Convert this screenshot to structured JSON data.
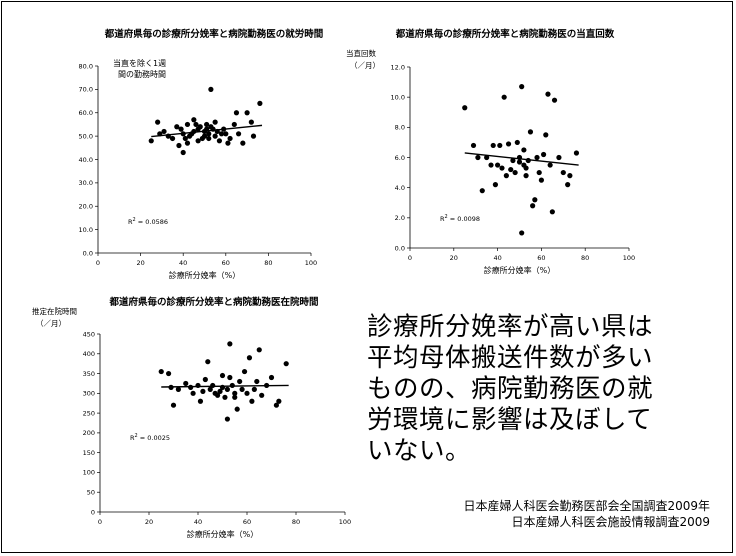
{
  "main_text": "診療所分娩率が高い県は\n平均母体搬送件数が多い\nものの、病院勤務医の就\n労環境に影響は及ぼして\nいない。",
  "sources": [
    "日本産婦人科医会勤務医部会全国調査2009年",
    "日本産婦人科医会施設情報調査2009"
  ],
  "chart_data": [
    {
      "type": "scatter",
      "title": "都道府県毎の診療所分娩率と病院勤務医の就労時間",
      "xlabel": "診療所分娩率（%）",
      "ylabel": "",
      "y_unit": [],
      "annotation": [
        "当直を除く1週",
        "間の勤務時間"
      ],
      "r2_text": "R² = 0.0586",
      "r2_base": "R",
      "r2_sup": "2",
      "r2_rest": " = 0.0586",
      "xlim": [
        0,
        100
      ],
      "ylim": [
        0,
        80
      ],
      "x_ticks": [
        0,
        20,
        40,
        60,
        80,
        100
      ],
      "y_ticks": [
        "0.0",
        "10.0",
        "20.0",
        "30.0",
        "40.0",
        "50.0",
        "60.0",
        "70.0",
        "80.0"
      ],
      "x": [
        25,
        28,
        29,
        31,
        33,
        35,
        37,
        38,
        39,
        40,
        40,
        41,
        42,
        42,
        43,
        44,
        45,
        45,
        46,
        47,
        47,
        48,
        49,
        50,
        50,
        51,
        51,
        52,
        52,
        53,
        53,
        54,
        55,
        55,
        56,
        57,
        58,
        59,
        60,
        61,
        62,
        64,
        65,
        66,
        68,
        70,
        72,
        73,
        76
      ],
      "y": [
        48,
        56,
        51,
        52,
        50,
        49,
        54,
        46,
        53,
        51,
        43,
        49,
        55,
        47,
        50,
        51,
        52,
        57,
        55,
        53,
        48,
        54,
        49,
        52,
        50,
        53,
        55,
        51,
        49,
        54,
        70,
        53,
        50,
        56,
        52,
        48,
        51,
        53,
        51,
        47,
        49,
        55,
        60,
        51,
        47,
        60,
        56,
        50,
        64
      ],
      "trend": {
        "x": [
          25,
          77
        ],
        "y": [
          49.8,
          54.6
        ]
      }
    },
    {
      "type": "scatter",
      "title": "都道府県毎の診療所分娩率と病院勤務医の当直回数",
      "xlabel": "診療所分娩率（%）",
      "ylabel": "当直回数",
      "y_unit": [
        "（／月）"
      ],
      "annotation": [],
      "r2_text": "R² = 0.0098",
      "r2_base": "R",
      "r2_sup": "2",
      "r2_rest": " = 0.0098",
      "xlim": [
        0,
        100
      ],
      "ylim": [
        0,
        12
      ],
      "x_ticks": [
        0,
        20,
        40,
        60,
        80,
        100
      ],
      "y_ticks": [
        "0.0",
        "2.0",
        "4.0",
        "6.0",
        "8.0",
        "10.0",
        "12.0"
      ],
      "x": [
        25,
        29,
        31,
        33,
        35,
        37,
        38,
        39,
        40,
        41,
        42,
        43,
        44,
        45,
        46,
        47,
        48,
        49,
        50,
        50,
        51,
        51,
        52,
        52,
        53,
        53,
        54,
        55,
        56,
        57,
        58,
        59,
        60,
        61,
        62,
        63,
        64,
        65,
        66,
        68,
        70,
        72,
        73,
        76
      ],
      "y": [
        9.3,
        6.8,
        6.0,
        3.8,
        6.0,
        5.5,
        6.8,
        4.2,
        5.5,
        6.8,
        5.3,
        10.0,
        4.8,
        6.9,
        5.2,
        5.8,
        5.0,
        7.0,
        5.7,
        6.0,
        1.0,
        10.7,
        5.5,
        6.5,
        4.8,
        5.3,
        5.8,
        7.7,
        2.8,
        3.2,
        6.0,
        5.0,
        4.5,
        6.2,
        7.5,
        10.2,
        5.5,
        2.4,
        9.8,
        6.0,
        5.0,
        4.2,
        4.8,
        6.3
      ],
      "trend": {
        "x": [
          25,
          77
        ],
        "y": [
          6.3,
          5.5
        ]
      }
    },
    {
      "type": "scatter",
      "title": "都道府県毎の診療所分娩率と病院勤務医在院時間",
      "xlabel": "診療所分娩率（%）",
      "ylabel": "推定在院時間",
      "y_unit": [
        "（／月）"
      ],
      "annotation": [],
      "r2_text": "R² = 0.0025",
      "r2_base": "R",
      "r2_sup": "2",
      "r2_rest": " = 0.0025",
      "xlim": [
        0,
        100
      ],
      "ylim": [
        0,
        450
      ],
      "x_ticks": [
        0,
        20,
        40,
        60,
        80,
        100
      ],
      "y_ticks": [
        "0",
        "50",
        "100",
        "150",
        "200",
        "250",
        "300",
        "350",
        "400",
        "450"
      ],
      "x": [
        25,
        28,
        29,
        30,
        32,
        35,
        37,
        38,
        40,
        41,
        42,
        43,
        44,
        45,
        46,
        47,
        48,
        49,
        50,
        50,
        51,
        52,
        52,
        53,
        53,
        54,
        55,
        55,
        56,
        57,
        58,
        59,
        60,
        61,
        62,
        63,
        64,
        65,
        66,
        68,
        70,
        72,
        73,
        76
      ],
      "y": [
        355,
        350,
        315,
        270,
        310,
        325,
        315,
        300,
        320,
        280,
        305,
        335,
        380,
        310,
        320,
        300,
        295,
        305,
        345,
        315,
        290,
        310,
        235,
        340,
        425,
        320,
        300,
        290,
        260,
        330,
        310,
        355,
        300,
        390,
        280,
        310,
        330,
        410,
        295,
        320,
        340,
        270,
        280,
        375
      ],
      "trend": {
        "x": [
          25,
          77
        ],
        "y": [
          316,
          320
        ]
      }
    }
  ]
}
